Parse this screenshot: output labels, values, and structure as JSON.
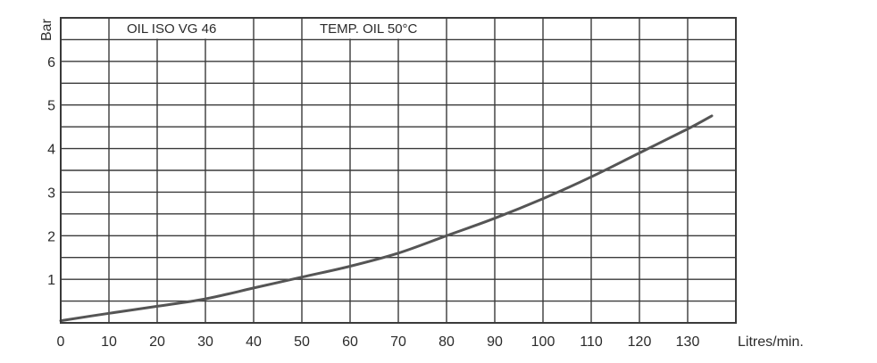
{
  "chart_data": {
    "type": "line",
    "xlabel": "Litres/min.",
    "ylabel": "Bar",
    "xlim": [
      0,
      140
    ],
    "ylim": [
      0,
      7
    ],
    "x_ticks": [
      0,
      10,
      20,
      30,
      40,
      50,
      60,
      70,
      80,
      90,
      100,
      110,
      120,
      130
    ],
    "y_ticks": [
      1,
      2,
      3,
      4,
      5,
      6
    ],
    "grid": true,
    "annotations": [
      "OIL ISO VG 46",
      "TEMP. OIL 50°C"
    ],
    "series": [
      {
        "x": [
          0,
          10,
          20,
          30,
          40,
          50,
          60,
          70,
          80,
          90,
          100,
          110,
          120,
          130,
          135
        ],
        "y": [
          0.05,
          0.22,
          0.38,
          0.55,
          0.8,
          1.05,
          1.3,
          1.6,
          2.0,
          2.4,
          2.85,
          3.35,
          3.9,
          4.45,
          4.75
        ]
      }
    ]
  },
  "colors": {
    "grid": "#3a3a3a",
    "curve": "#555555",
    "text": "#2b2b2b"
  }
}
